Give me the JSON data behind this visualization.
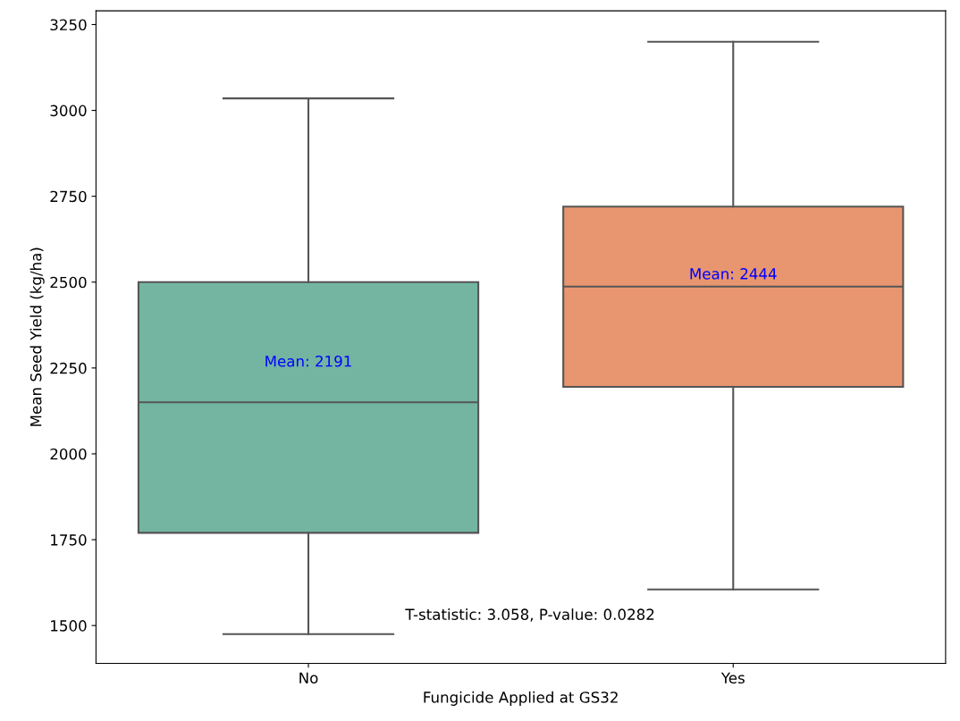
{
  "chart_data": {
    "type": "box",
    "xlabel": "Fungicide Applied at GS32",
    "ylabel": "Mean Seed Yield (kg/ha)",
    "categories": [
      "No",
      "Yes"
    ],
    "boxes": [
      {
        "low": 1475,
        "q1": 1770,
        "median": 2150,
        "q3": 2500,
        "high": 3035
      },
      {
        "low": 1605,
        "q1": 2195,
        "median": 2487,
        "q3": 2720,
        "high": 3200
      }
    ],
    "colors": [
      "#73b5a1",
      "#e8966f"
    ],
    "ylim": [
      1390,
      3290
    ],
    "yticks": [
      1500,
      1750,
      2000,
      2250,
      2500,
      2750,
      3000,
      3250
    ],
    "annotations": [
      "Mean: 2191",
      "Mean: 2444",
      "T-statistic: 3.058, P-value: 0.0282"
    ],
    "grid": false
  }
}
